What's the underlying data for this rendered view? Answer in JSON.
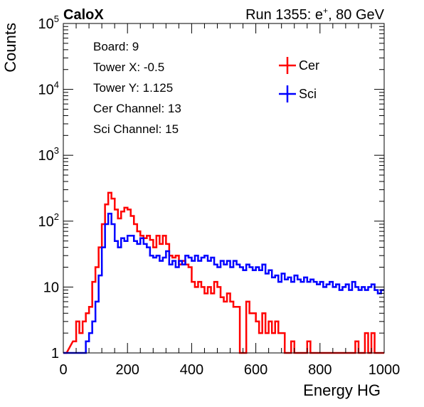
{
  "header": {
    "left_label": "CaloX",
    "right_label": "Run 1355: e",
    "right_superscript": "+",
    "right_suffix": ", 80 GeV"
  },
  "info_lines": [
    "Board: 9",
    "Tower X: -0.5",
    "Tower Y: 1.125",
    "Cer Channel: 13",
    "Sci Channel: 15"
  ],
  "colors": {
    "cer": "#ff0000",
    "sci": "#0000ff",
    "axis": "#000000"
  },
  "chart_data": {
    "type": "line",
    "xlabel": "Energy HG",
    "ylabel": "Counts",
    "xlim": [
      0,
      1000
    ],
    "ylim": [
      1,
      100000
    ],
    "y_scale": "log",
    "grid": false,
    "legend_position": "top-right",
    "x_tick_labels": [
      "0",
      "200",
      "400",
      "600",
      "800",
      "1000"
    ],
    "x_tick_values": [
      0,
      200,
      400,
      600,
      800,
      1000
    ],
    "y_tick_labels": [
      {
        "base": "1",
        "exp": ""
      },
      {
        "base": "10",
        "exp": ""
      },
      {
        "base": "10",
        "exp": "2"
      },
      {
        "base": "10",
        "exp": "3"
      },
      {
        "base": "10",
        "exp": "4"
      },
      {
        "base": "10",
        "exp": "5"
      }
    ],
    "y_tick_values": [
      1,
      10,
      100,
      1000,
      10000,
      100000
    ],
    "series": [
      {
        "name": "Cer",
        "x": [
          0,
          30,
          40,
          50,
          60,
          70,
          80,
          90,
          100,
          110,
          120,
          130,
          140,
          150,
          160,
          170,
          180,
          190,
          200,
          210,
          220,
          230,
          240,
          250,
          260,
          270,
          280,
          290,
          300,
          310,
          320,
          330,
          340,
          350,
          360,
          370,
          380,
          390,
          400,
          410,
          420,
          430,
          440,
          450,
          460,
          470,
          480,
          490,
          500,
          510,
          520,
          530,
          540,
          550,
          560,
          570,
          580,
          590,
          600,
          610,
          620,
          630,
          640,
          650,
          660,
          670,
          680,
          690,
          700,
          710,
          720,
          730,
          740,
          750,
          760,
          770,
          780,
          790,
          800,
          810,
          820,
          830,
          840,
          850,
          860,
          870,
          880,
          890,
          900,
          910,
          920,
          930,
          940,
          950,
          960,
          970,
          980,
          990
        ],
        "y": [
          1,
          1.5,
          3,
          2,
          3,
          4,
          5,
          12,
          20,
          40,
          90,
          180,
          270,
          220,
          150,
          110,
          140,
          160,
          150,
          120,
          90,
          70,
          60,
          55,
          60,
          52,
          40,
          60,
          45,
          60,
          45,
          30,
          28,
          30,
          22,
          25,
          22,
          20,
          12,
          10,
          12,
          10,
          8,
          10,
          8,
          12,
          10,
          7,
          6,
          8,
          6,
          5,
          5,
          1,
          1,
          6,
          4,
          4,
          3,
          2,
          4,
          2,
          3,
          2,
          3,
          2,
          2,
          1,
          1,
          1.5,
          1,
          1,
          1,
          1,
          1.5,
          1,
          1,
          1,
          1,
          1,
          1,
          1,
          1,
          1,
          1,
          1,
          1,
          1,
          1,
          1.5,
          1,
          1,
          2,
          1,
          2,
          1,
          1,
          1
        ]
      },
      {
        "name": "Sci",
        "x": [
          0,
          30,
          40,
          50,
          60,
          70,
          80,
          90,
          100,
          110,
          120,
          130,
          140,
          150,
          160,
          170,
          180,
          190,
          200,
          210,
          220,
          230,
          240,
          250,
          260,
          270,
          280,
          290,
          300,
          310,
          320,
          330,
          340,
          350,
          360,
          370,
          380,
          390,
          400,
          410,
          420,
          430,
          440,
          450,
          460,
          470,
          480,
          490,
          500,
          510,
          520,
          530,
          540,
          550,
          560,
          570,
          580,
          590,
          600,
          610,
          620,
          630,
          640,
          650,
          660,
          670,
          680,
          690,
          700,
          710,
          720,
          730,
          740,
          750,
          760,
          770,
          780,
          790,
          800,
          810,
          820,
          830,
          840,
          850,
          860,
          870,
          880,
          890,
          900,
          910,
          920,
          930,
          940,
          950,
          960,
          970,
          980,
          990
        ],
        "y": [
          1,
          1,
          1,
          1,
          1,
          1.5,
          2,
          3,
          6,
          15,
          40,
          90,
          130,
          90,
          50,
          40,
          55,
          50,
          60,
          60,
          50,
          45,
          55,
          45,
          40,
          30,
          28,
          30,
          25,
          28,
          35,
          22,
          25,
          20,
          25,
          22,
          30,
          28,
          25,
          30,
          25,
          28,
          30,
          25,
          28,
          22,
          20,
          25,
          22,
          25,
          20,
          25,
          22,
          20,
          18,
          22,
          20,
          18,
          20,
          18,
          22,
          16,
          18,
          14,
          15,
          12,
          16,
          13,
          14,
          12,
          15,
          13,
          12,
          14,
          12,
          13,
          12,
          11,
          12,
          10,
          11,
          12,
          10,
          11,
          9,
          10,
          11,
          9,
          12,
          10,
          9,
          10,
          9,
          10,
          11,
          9,
          8,
          9
        ]
      }
    ]
  }
}
